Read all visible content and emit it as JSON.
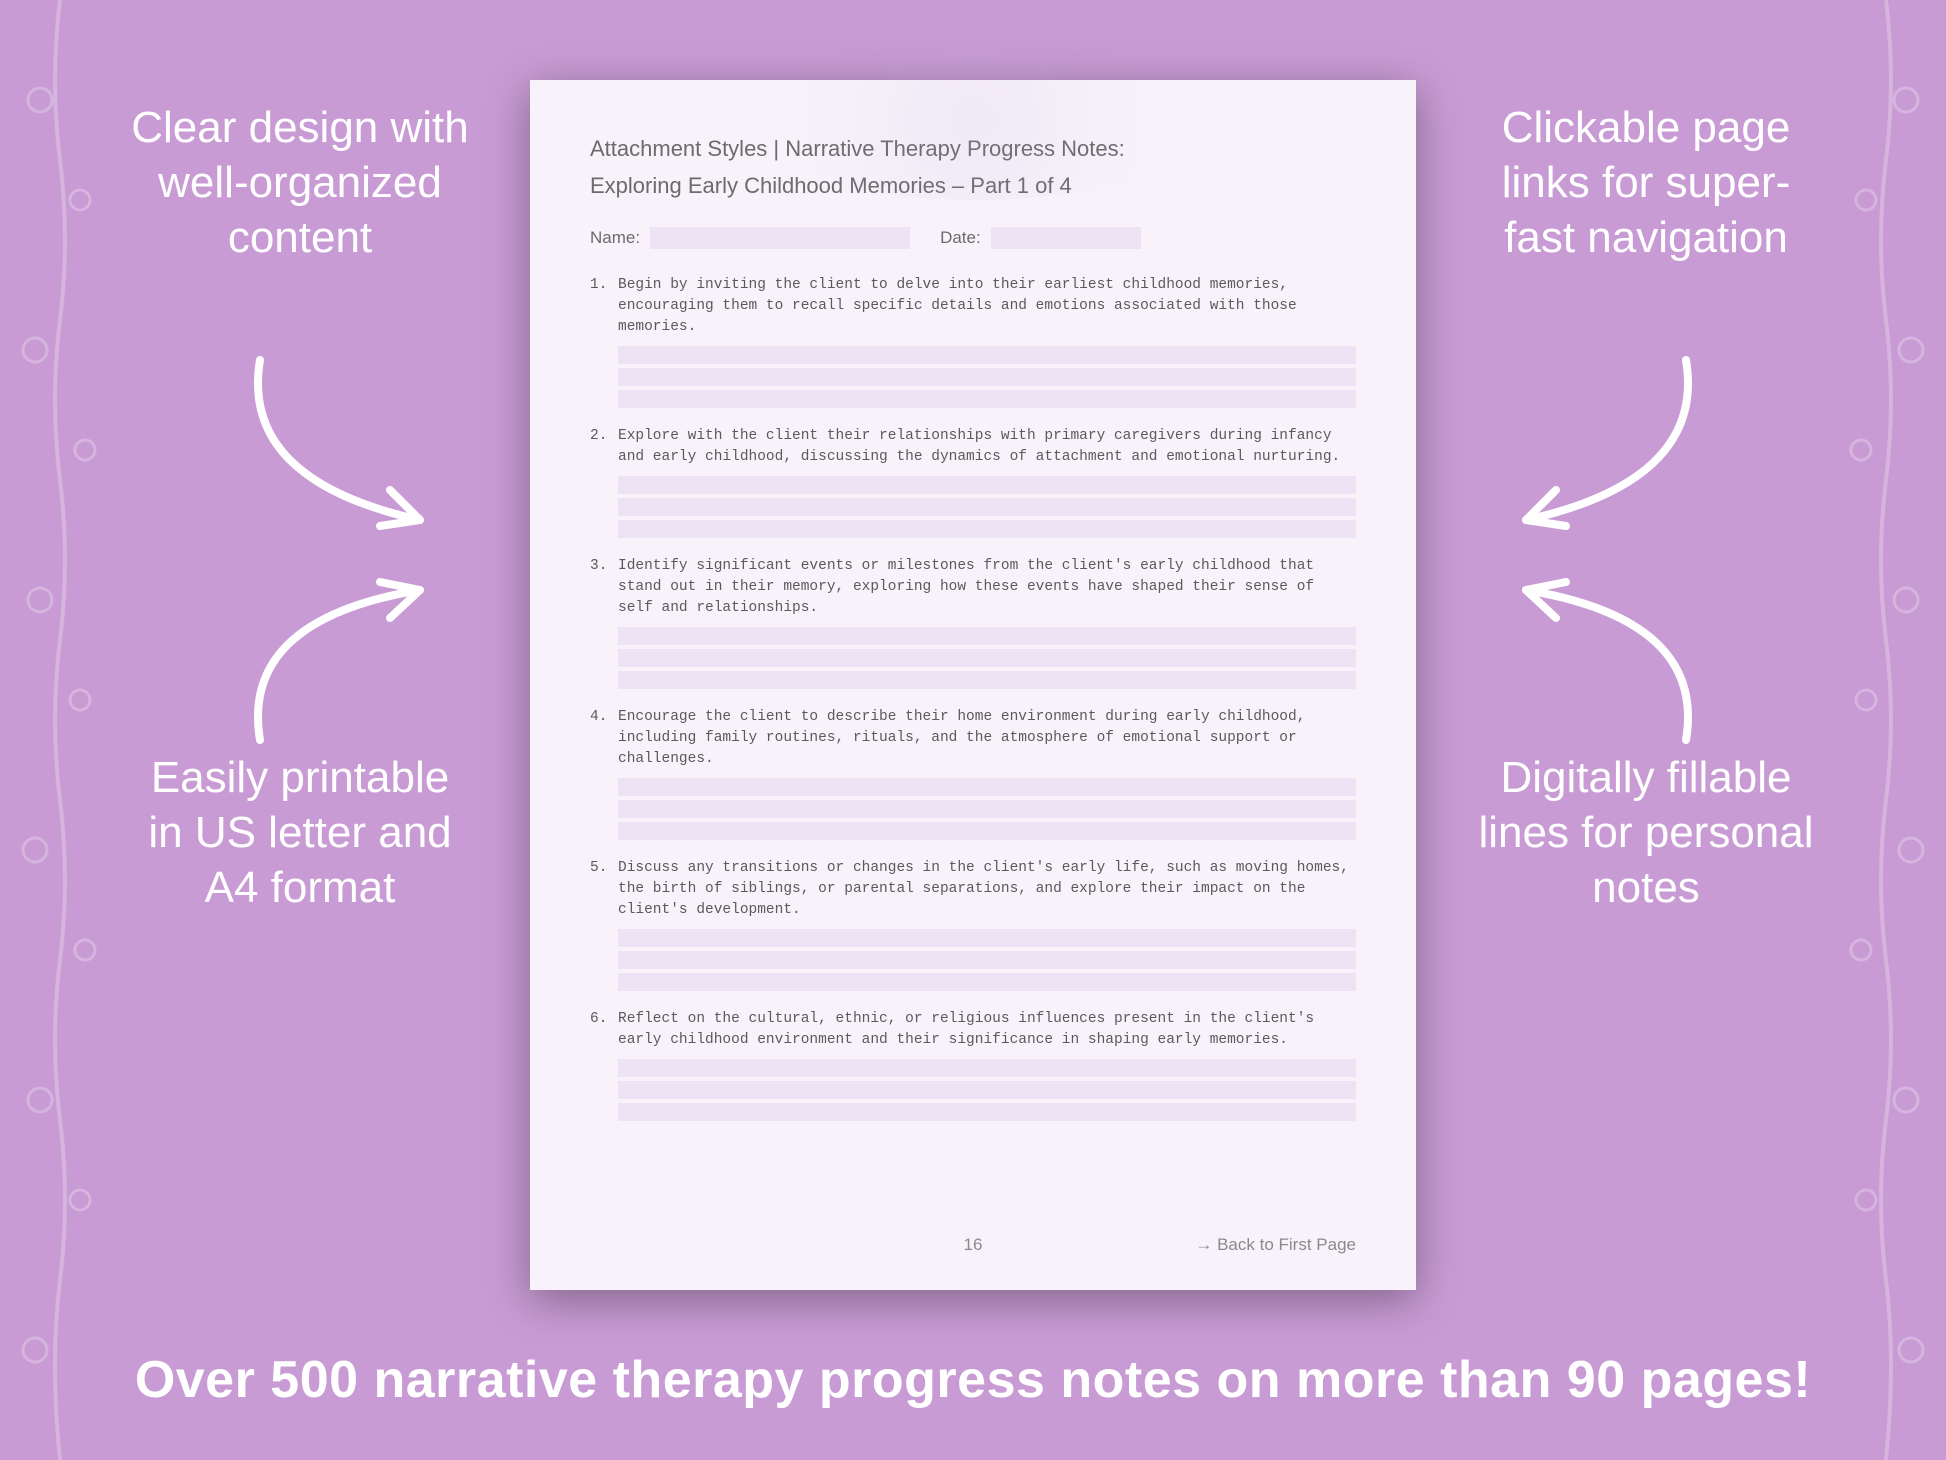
{
  "colors": {
    "background": "#c89bd4",
    "callout_text": "#ffffff",
    "page_bg": "#f8f3fb",
    "fill_bg": "#eee3f5",
    "header_text": "#6b6b6b",
    "body_text": "#5a5a5a",
    "footer_text": "#8a8a8a"
  },
  "callouts": {
    "top_left": "Clear design with well-organized content",
    "top_right": "Clickable page links for super-fast navigation",
    "bottom_left": "Easily printable in US letter and A4 format",
    "bottom_right": "Digitally fillable lines for personal notes"
  },
  "bottom_banner": "Over 500 narrative therapy progress notes on more than 90 pages!",
  "page": {
    "title_line1": "Attachment Styles | Narrative Therapy Progress Notes:",
    "title_line2": "Exploring Early Childhood Memories  – Part 1 of 4",
    "meta": {
      "name_label": "Name:",
      "date_label": "Date:"
    },
    "items": [
      {
        "num": "1.",
        "text": "Begin by inviting the client to delve into their earliest childhood memories, encouraging them to recall specific details and emotions associated with those memories.",
        "lines": 3
      },
      {
        "num": "2.",
        "text": "Explore with the client their relationships with primary caregivers during infancy and early childhood, discussing the dynamics of attachment and emotional nurturing.",
        "lines": 3
      },
      {
        "num": "3.",
        "text": "Identify significant events or milestones from the client's early childhood that stand out in their memory, exploring how these events have shaped their sense of self and relationships.",
        "lines": 3
      },
      {
        "num": "4.",
        "text": "Encourage the client to describe their home environment during early childhood, including family routines, rituals, and the atmosphere of emotional support or challenges.",
        "lines": 3
      },
      {
        "num": "5.",
        "text": "Discuss any transitions or changes in the client's early life, such as moving homes, the birth of siblings, or parental separations, and explore their impact on the client's development.",
        "lines": 3
      },
      {
        "num": "6.",
        "text": "Reflect on the cultural, ethnic, or religious influences present in the client's early childhood environment and their significance in shaping early memories.",
        "lines": 3
      }
    ],
    "footer": {
      "page_number": "16",
      "back_link": "→ Back to First Page"
    }
  }
}
